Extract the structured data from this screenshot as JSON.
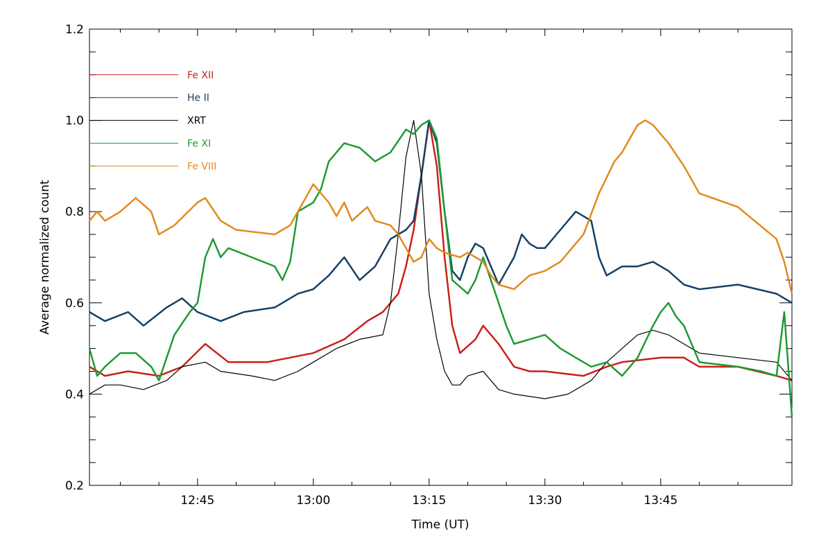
{
  "chart_data": {
    "type": "line",
    "xlabel": "Time (UT)",
    "ylabel": "Average normalized count",
    "xlim": [
      "12:31",
      "14:02"
    ],
    "ylim": [
      0.2,
      1.2
    ],
    "x_ticks": [
      "12:45",
      "13:00",
      "13:15",
      "13:30",
      "13:45"
    ],
    "y_ticks": [
      "0.2",
      "0.4",
      "0.6",
      "0.8",
      "1.0",
      "1.2"
    ],
    "legend_position": "top-left",
    "series": [
      {
        "name": "Fe XII",
        "color": "#cc1f1a",
        "width": 2.5,
        "x": [
          "12:31",
          "12:33",
          "12:36",
          "12:40",
          "12:43",
          "12:46",
          "12:49",
          "12:54",
          "13:00",
          "13:04",
          "13:07",
          "13:09",
          "13:11",
          "13:12",
          "13:13",
          "13:14",
          "13:15",
          "13:16",
          "13:17",
          "13:18",
          "13:19",
          "13:21",
          "13:22",
          "13:24",
          "13:26",
          "13:28",
          "13:30",
          "13:35",
          "13:38",
          "13:40",
          "13:45",
          "13:48",
          "13:50",
          "13:55",
          "14:00",
          "14:02"
        ],
        "y": [
          0.46,
          0.44,
          0.45,
          0.44,
          0.46,
          0.51,
          0.47,
          0.47,
          0.49,
          0.52,
          0.56,
          0.58,
          0.62,
          0.68,
          0.76,
          0.88,
          1.0,
          0.9,
          0.7,
          0.55,
          0.49,
          0.52,
          0.55,
          0.51,
          0.46,
          0.45,
          0.45,
          0.44,
          0.46,
          0.47,
          0.48,
          0.48,
          0.46,
          0.46,
          0.44,
          0.43
        ]
      },
      {
        "name": "He II",
        "color": "#143f66",
        "width": 2.5,
        "x": [
          "12:31",
          "12:33",
          "12:36",
          "12:38",
          "12:41",
          "12:43",
          "12:45",
          "12:48",
          "12:51",
          "12:55",
          "12:58",
          "13:00",
          "13:02",
          "13:04",
          "13:06",
          "13:08",
          "13:10",
          "13:12",
          "13:13",
          "13:14",
          "13:15",
          "13:16",
          "13:17",
          "13:18",
          "13:19",
          "13:20",
          "13:21",
          "13:22",
          "13:23",
          "13:24",
          "13:25",
          "13:26",
          "13:27",
          "13:28",
          "13:29",
          "13:30",
          "13:32",
          "13:34",
          "13:36",
          "13:37",
          "13:38",
          "13:40",
          "13:42",
          "13:44",
          "13:46",
          "13:48",
          "13:50",
          "13:55",
          "14:00",
          "14:02"
        ],
        "y": [
          0.58,
          0.56,
          0.58,
          0.55,
          0.59,
          0.61,
          0.58,
          0.56,
          0.58,
          0.59,
          0.62,
          0.63,
          0.66,
          0.7,
          0.65,
          0.68,
          0.74,
          0.76,
          0.78,
          0.88,
          1.0,
          0.95,
          0.8,
          0.67,
          0.65,
          0.7,
          0.73,
          0.72,
          0.68,
          0.64,
          0.67,
          0.7,
          0.75,
          0.73,
          0.72,
          0.72,
          0.76,
          0.8,
          0.78,
          0.7,
          0.66,
          0.68,
          0.68,
          0.69,
          0.67,
          0.64,
          0.63,
          0.64,
          0.62,
          0.6
        ]
      },
      {
        "name": "XRT",
        "color": "#000000",
        "width": 1.2,
        "x": [
          "12:31",
          "12:33",
          "12:35",
          "12:38",
          "12:41",
          "12:43",
          "12:46",
          "12:48",
          "12:52",
          "12:55",
          "12:58",
          "13:00",
          "13:03",
          "13:06",
          "13:09",
          "13:10",
          "13:11",
          "13:12",
          "13:13",
          "13:14",
          "13:15",
          "13:16",
          "13:17",
          "13:18",
          "13:19",
          "13:20",
          "13:22",
          "13:23",
          "13:24",
          "13:26",
          "13:30",
          "13:33",
          "13:36",
          "13:38",
          "13:40",
          "13:42",
          "13:44",
          "13:46",
          "13:48",
          "13:50",
          "13:55",
          "14:00",
          "14:02"
        ],
        "y": [
          0.4,
          0.42,
          0.42,
          0.41,
          0.43,
          0.46,
          0.47,
          0.45,
          0.44,
          0.43,
          0.45,
          0.47,
          0.5,
          0.52,
          0.53,
          0.6,
          0.75,
          0.92,
          1.0,
          0.88,
          0.62,
          0.52,
          0.45,
          0.42,
          0.42,
          0.44,
          0.45,
          0.43,
          0.41,
          0.4,
          0.39,
          0.4,
          0.43,
          0.47,
          0.5,
          0.53,
          0.54,
          0.53,
          0.51,
          0.49,
          0.48,
          0.47,
          0.43
        ]
      },
      {
        "name": "Fe XI",
        "color": "#1e9a34",
        "width": 2.5,
        "x": [
          "12:31",
          "12:32",
          "12:33",
          "12:35",
          "12:37",
          "12:39",
          "12:40",
          "12:42",
          "12:44",
          "12:45",
          "12:46",
          "12:47",
          "12:48",
          "12:49",
          "12:52",
          "12:55",
          "12:56",
          "12:57",
          "12:58",
          "13:00",
          "13:01",
          "13:02",
          "13:04",
          "13:06",
          "13:08",
          "13:10",
          "13:12",
          "13:13",
          "13:14",
          "13:15",
          "13:16",
          "13:17",
          "13:18",
          "13:20",
          "13:21",
          "13:22",
          "13:24",
          "13:25",
          "13:26",
          "13:28",
          "13:30",
          "13:32",
          "13:34",
          "13:36",
          "13:38",
          "13:40",
          "13:42",
          "13:44",
          "13:45",
          "13:46",
          "13:47",
          "13:48",
          "13:50",
          "13:55",
          "13:58",
          "14:00",
          "14:01",
          "14:02"
        ],
        "y": [
          0.5,
          0.44,
          0.46,
          0.49,
          0.49,
          0.46,
          0.43,
          0.53,
          0.58,
          0.6,
          0.7,
          0.74,
          0.7,
          0.72,
          0.7,
          0.68,
          0.65,
          0.69,
          0.8,
          0.82,
          0.85,
          0.91,
          0.95,
          0.94,
          0.91,
          0.93,
          0.98,
          0.97,
          0.99,
          1.0,
          0.96,
          0.8,
          0.65,
          0.62,
          0.65,
          0.7,
          0.6,
          0.55,
          0.51,
          0.52,
          0.53,
          0.5,
          0.48,
          0.46,
          0.47,
          0.44,
          0.48,
          0.55,
          0.58,
          0.6,
          0.57,
          0.55,
          0.47,
          0.46,
          0.45,
          0.44,
          0.58,
          0.35
        ]
      },
      {
        "name": "Fe VIII",
        "color": "#e08a1e",
        "width": 2.5,
        "x": [
          "12:31",
          "12:32",
          "12:33",
          "12:35",
          "12:37",
          "12:39",
          "12:40",
          "12:42",
          "12:45",
          "12:46",
          "12:48",
          "12:50",
          "12:55",
          "12:57",
          "12:59",
          "13:00",
          "13:02",
          "13:03",
          "13:04",
          "13:05",
          "13:07",
          "13:08",
          "13:10",
          "13:11",
          "13:12",
          "13:13",
          "13:14",
          "13:15",
          "13:16",
          "13:17",
          "13:19",
          "13:20",
          "13:22",
          "13:23",
          "13:24",
          "13:26",
          "13:28",
          "13:30",
          "13:32",
          "13:35",
          "13:37",
          "13:39",
          "13:40",
          "13:41",
          "13:42",
          "13:43",
          "13:44",
          "13:46",
          "13:48",
          "13:50",
          "13:55",
          "14:00",
          "14:01",
          "14:02"
        ],
        "y": [
          0.78,
          0.8,
          0.78,
          0.8,
          0.83,
          0.8,
          0.75,
          0.77,
          0.82,
          0.83,
          0.78,
          0.76,
          0.75,
          0.77,
          0.83,
          0.86,
          0.82,
          0.79,
          0.82,
          0.78,
          0.81,
          0.78,
          0.77,
          0.75,
          0.72,
          0.69,
          0.7,
          0.74,
          0.72,
          0.71,
          0.7,
          0.71,
          0.69,
          0.66,
          0.64,
          0.63,
          0.66,
          0.67,
          0.69,
          0.75,
          0.84,
          0.91,
          0.93,
          0.96,
          0.99,
          1.0,
          0.99,
          0.95,
          0.9,
          0.84,
          0.81,
          0.74,
          0.69,
          0.62
        ]
      }
    ]
  }
}
